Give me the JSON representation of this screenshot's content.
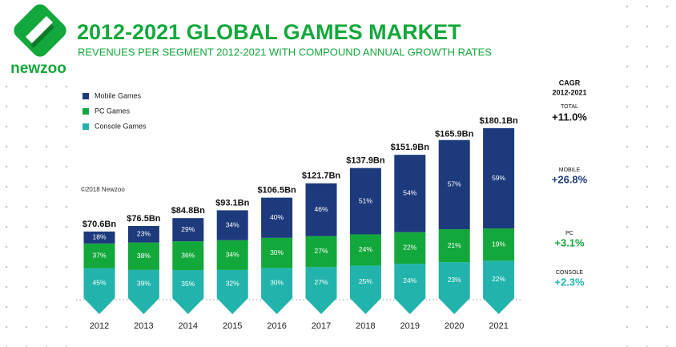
{
  "brand": "newzoo",
  "chart_data": {
    "type": "stacked-bar",
    "title": "2012-2021 GLOBAL GAMES MARKET",
    "subtitle": "REVENUES PER SEGMENT 2012-2021 WITH COMPOUND ANNUAL GROWTH RATES",
    "copyright": "©2018 Newzoo",
    "categories": [
      "2012",
      "2013",
      "2014",
      "2015",
      "2016",
      "2017",
      "2018",
      "2019",
      "2020",
      "2021"
    ],
    "totals": {
      "values": [
        70.6,
        76.5,
        84.8,
        93.1,
        106.5,
        121.7,
        137.9,
        151.9,
        165.9,
        180.1
      ],
      "value_labels": [
        "$70.6Bn",
        "$76.5Bn",
        "$84.8Bn",
        "$93.1Bn",
        "$106.5Bn",
        "$121.7Bn",
        "$137.9Bn",
        "$151.9Bn",
        "$165.9Bn",
        "$180.1Bn"
      ]
    },
    "series": [
      {
        "name": "Mobile Games",
        "color": "#1d3a7c",
        "values": [
          18,
          23,
          29,
          34,
          40,
          46,
          51,
          54,
          57,
          59
        ],
        "value_labels": [
          "18%",
          "23%",
          "29%",
          "34%",
          "40%",
          "46%",
          "51%",
          "54%",
          "57%",
          "59%"
        ]
      },
      {
        "name": "PC Games",
        "color": "#13a83b",
        "values": [
          37,
          38,
          36,
          34,
          30,
          27,
          24,
          22,
          21,
          19
        ],
        "value_labels": [
          "37%",
          "38%",
          "36%",
          "34%",
          "30%",
          "27%",
          "24%",
          "22%",
          "21%",
          "19%"
        ]
      },
      {
        "name": "Console Games",
        "color": "#22b4ac",
        "values": [
          45,
          39,
          35,
          32,
          30,
          27,
          25,
          24,
          23,
          22
        ],
        "value_labels": [
          "45%",
          "39%",
          "35%",
          "32%",
          "30%",
          "27%",
          "25%",
          "24%",
          "23%",
          "22%"
        ]
      }
    ]
  },
  "cagr": {
    "title": "CAGR",
    "period": "2012-2021",
    "items": [
      {
        "label": "TOTAL",
        "value": "+11.0%",
        "color": "#111111"
      },
      {
        "label": "MOBILE",
        "value": "+26.8%",
        "color": "#1d3a7c"
      },
      {
        "label": "PC",
        "value": "+3.1%",
        "color": "#13a83b"
      },
      {
        "label": "CONSOLE",
        "value": "+2.3%",
        "color": "#22b4ac"
      }
    ]
  }
}
